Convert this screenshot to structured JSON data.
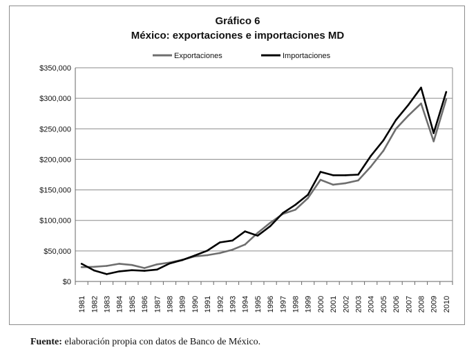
{
  "chart_data": {
    "type": "line",
    "title": "Gráfico 6",
    "subtitle": "México: exportaciones e importaciones MD",
    "xlabel": "",
    "ylabel": "",
    "ylim": [
      0,
      350000
    ],
    "yticks": [
      0,
      50000,
      100000,
      150000,
      200000,
      250000,
      300000,
      350000
    ],
    "ytick_labels": [
      "$0",
      "$50,000",
      "$100,000",
      "$150,000",
      "$200,000",
      "$250,000",
      "$300,000",
      "$350,000"
    ],
    "grid": true,
    "legend_position": "top",
    "x": [
      "1981",
      "1982",
      "1983",
      "1984",
      "1985",
      "1986",
      "1987",
      "1988",
      "1989",
      "1990",
      "1991",
      "1992",
      "1993",
      "1994",
      "1995",
      "1996",
      "1997",
      "1998",
      "1999",
      "2000",
      "2001",
      "2002",
      "2003",
      "2004",
      "2005",
      "2006",
      "2007",
      "2008",
      "2009",
      "2010"
    ],
    "series": [
      {
        "name": "Exportaciones",
        "color": "#6e6e6e",
        "values": [
          23500,
          24000,
          25500,
          29000,
          27000,
          22000,
          28000,
          31000,
          35500,
          41000,
          43000,
          46500,
          52000,
          60500,
          79500,
          96000,
          110500,
          117500,
          136500,
          166500,
          158500,
          161000,
          165500,
          188000,
          214000,
          250000,
          272000,
          291500,
          229500,
          298500
        ]
      },
      {
        "name": "Importaciones",
        "color": "#000000",
        "values": [
          29000,
          18000,
          12000,
          16500,
          18500,
          17500,
          19500,
          29500,
          35000,
          42500,
          50500,
          64000,
          67000,
          82000,
          75000,
          90500,
          112000,
          125500,
          142000,
          179500,
          174000,
          174000,
          175000,
          205500,
          231000,
          264500,
          289500,
          317500,
          243000,
          310500
        ]
      }
    ]
  },
  "footer": {
    "source_label": "Fuente:",
    "source_text": " elaboración propia con datos de Banco de México."
  }
}
